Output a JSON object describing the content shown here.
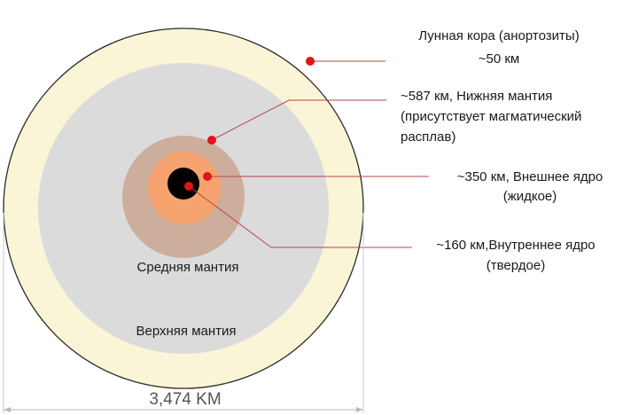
{
  "labels": {
    "crust_line1": "Лунная кора (анортозиты)",
    "crust_line2": "~50 км",
    "lower_mantle_line1": "~587 км, Нижняя мантия",
    "lower_mantle_line2": "(присутствует магматический",
    "lower_mantle_line3": "расплав)",
    "outer_core_line1": "~350 км, Внешнее ядро",
    "outer_core_line2": "(жидкое)",
    "inner_core_line1": "~160 км,Внутреннее ядро",
    "inner_core_line2": "(твердое)",
    "middle_mantle": "Средняя мантия",
    "upper_mantle": "Верхняя мантия",
    "diameter": "3,474 KM"
  },
  "colors": {
    "crust": "#faf5d6",
    "upper_mantle": "#dcdbdc",
    "lower_mantle": "#cdad9c",
    "outer_core": "#f6a36f",
    "inner_core": "#000000",
    "marker": "#e0141b",
    "leader": "#b5454a",
    "outline": "#2b2b2b"
  }
}
